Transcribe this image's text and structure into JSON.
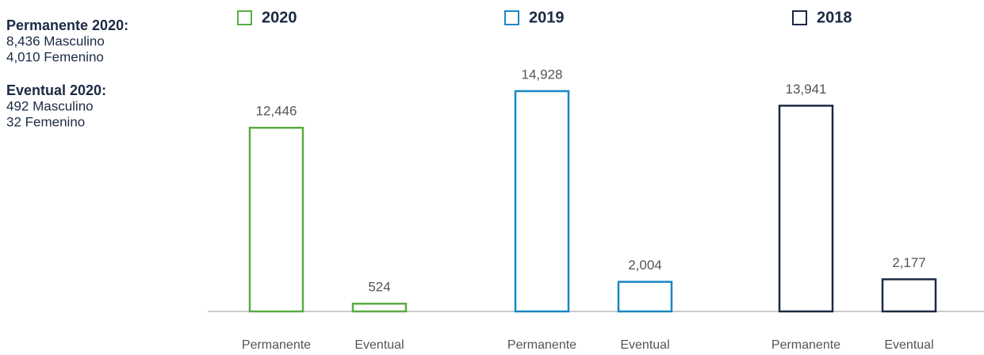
{
  "chart_data": {
    "type": "bar",
    "categories": [
      "Permanente",
      "Eventual"
    ],
    "series": [
      {
        "name": "2020",
        "color": "#5aac44",
        "values": [
          12446,
          524
        ],
        "value_labels": [
          "12,446",
          "524"
        ]
      },
      {
        "name": "2019",
        "color": "#1a87c4",
        "values": [
          14928,
          2004
        ],
        "value_labels": [
          "14,928",
          "2,004"
        ]
      },
      {
        "name": "2018",
        "color": "#1b2a44",
        "values": [
          13941,
          2177
        ],
        "value_labels": [
          "13,941",
          "2,177"
        ]
      }
    ],
    "annotations": [
      {
        "title": "Permanente 2020:",
        "lines": [
          "8,436 Masculino",
          "4,010 Femenino"
        ]
      },
      {
        "title": "Eventual 2020:",
        "lines": [
          "492 Masculino",
          "32 Femenino"
        ]
      }
    ]
  }
}
